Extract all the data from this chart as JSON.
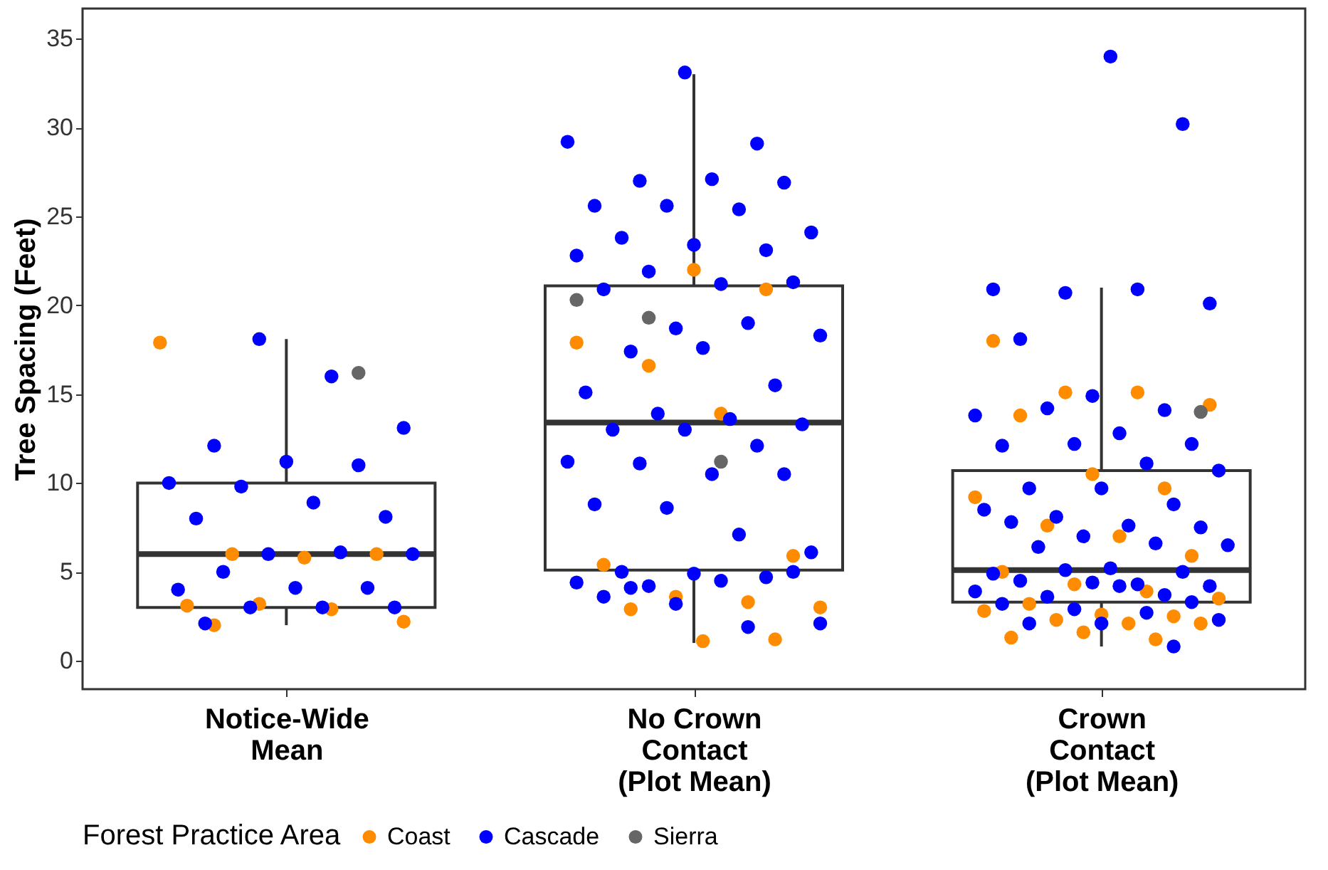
{
  "chart_data": {
    "type": "box",
    "ylabel": "Tree Spacing (Feet)",
    "legend_title": "Forest Practice Area",
    "legend": "bottom",
    "categories": [
      "Notice-Wide\nMean",
      "No Crown\nContact\n(Plot Mean)",
      "Crown\nContact\n(Plot Mean)"
    ],
    "ylim": [
      -1.6,
      36.7
    ],
    "yticks": [
      0,
      5,
      10,
      15,
      20,
      25,
      30,
      35
    ],
    "grid": false,
    "boxes": [
      {
        "low": 2.0,
        "q1": 3.0,
        "median": 6.0,
        "q3": 10.0,
        "high": 18.1
      },
      {
        "low": 1.0,
        "q1": 5.1,
        "median": 13.4,
        "q3": 21.1,
        "high": 33.0
      },
      {
        "low": 0.8,
        "q1": 3.3,
        "median": 5.1,
        "q3": 10.7,
        "high": 21.0
      }
    ],
    "series": [
      {
        "name": "Coast",
        "type": "scatter",
        "color": "#ff8c00",
        "x": [
          "Notice-Wide\nMean",
          "Notice-Wide\nMean",
          "Notice-Wide\nMean",
          "Notice-Wide\nMean",
          "Notice-Wide\nMean",
          "Notice-Wide\nMean",
          "Notice-Wide\nMean",
          "Notice-Wide\nMean",
          "Notice-Wide\nMean",
          "No Crown\nContact\n(Plot Mean)",
          "No Crown\nContact\n(Plot Mean)",
          "No Crown\nContact\n(Plot Mean)",
          "No Crown\nContact\n(Plot Mean)",
          "No Crown\nContact\n(Plot Mean)",
          "No Crown\nContact\n(Plot Mean)",
          "No Crown\nContact\n(Plot Mean)",
          "No Crown\nContact\n(Plot Mean)",
          "No Crown\nContact\n(Plot Mean)",
          "No Crown\nContact\n(Plot Mean)",
          "No Crown\nContact\n(Plot Mean)",
          "No Crown\nContact\n(Plot Mean)",
          "No Crown\nContact\n(Plot Mean)",
          "Crown\nContact\n(Plot Mean)",
          "Crown\nContact\n(Plot Mean)",
          "Crown\nContact\n(Plot Mean)",
          "Crown\nContact\n(Plot Mean)",
          "Crown\nContact\n(Plot Mean)",
          "Crown\nContact\n(Plot Mean)",
          "Crown\nContact\n(Plot Mean)",
          "Crown\nContact\n(Plot Mean)",
          "Crown\nContact\n(Plot Mean)",
          "Crown\nContact\n(Plot Mean)",
          "Crown\nContact\n(Plot Mean)",
          "Crown\nContact\n(Plot Mean)",
          "Crown\nContact\n(Plot Mean)",
          "Crown\nContact\n(Plot Mean)",
          "Crown\nContact\n(Plot Mean)",
          "Crown\nContact\n(Plot Mean)",
          "Crown\nContact\n(Plot Mean)",
          "Crown\nContact\n(Plot Mean)",
          "Crown\nContact\n(Plot Mean)",
          "Crown\nContact\n(Plot Mean)",
          "Crown\nContact\n(Plot Mean)",
          "Crown\nContact\n(Plot Mean)",
          "Crown\nContact\n(Plot Mean)",
          "Crown\nContact\n(Plot Mean)",
          "Crown\nContact\n(Plot Mean)"
        ],
        "values": [
          17.9,
          6.0,
          5.8,
          6.0,
          3.1,
          3.2,
          2.9,
          2.2,
          2.0,
          22.0,
          20.9,
          17.9,
          16.6,
          13.9,
          5.9,
          5.4,
          3.6,
          3.3,
          3.0,
          2.9,
          1.1,
          1.2,
          18.0,
          15.1,
          15.1,
          14.4,
          13.8,
          10.5,
          9.7,
          9.2,
          7.6,
          7.0,
          5.9,
          5.0,
          4.3,
          3.9,
          3.5,
          3.2,
          2.6,
          2.5,
          2.8,
          2.3,
          2.1,
          2.1,
          1.3,
          1.6,
          1.2
        ]
      },
      {
        "name": "Cascade",
        "type": "scatter",
        "color": "#0000ff",
        "x": [
          "Notice-Wide\nMean",
          "Notice-Wide\nMean",
          "Notice-Wide\nMean",
          "Notice-Wide\nMean",
          "Notice-Wide\nMean",
          "Notice-Wide\nMean",
          "Notice-Wide\nMean",
          "Notice-Wide\nMean",
          "Notice-Wide\nMean",
          "Notice-Wide\nMean",
          "Notice-Wide\nMean",
          "Notice-Wide\nMean",
          "Notice-Wide\nMean",
          "Notice-Wide\nMean",
          "Notice-Wide\nMean",
          "Notice-Wide\nMean",
          "Notice-Wide\nMean",
          "Notice-Wide\nMean",
          "Notice-Wide\nMean",
          "Notice-Wide\nMean",
          "Notice-Wide\nMean",
          "Notice-Wide\nMean",
          "No Crown\nContact\n(Plot Mean)",
          "No Crown\nContact\n(Plot Mean)",
          "No Crown\nContact\n(Plot Mean)",
          "No Crown\nContact\n(Plot Mean)",
          "No Crown\nContact\n(Plot Mean)",
          "No Crown\nContact\n(Plot Mean)",
          "No Crown\nContact\n(Plot Mean)",
          "No Crown\nContact\n(Plot Mean)",
          "No Crown\nContact\n(Plot Mean)",
          "No Crown\nContact\n(Plot Mean)",
          "No Crown\nContact\n(Plot Mean)",
          "No Crown\nContact\n(Plot Mean)",
          "No Crown\nContact\n(Plot Mean)",
          "No Crown\nContact\n(Plot Mean)",
          "No Crown\nContact\n(Plot Mean)",
          "No Crown\nContact\n(Plot Mean)",
          "No Crown\nContact\n(Plot Mean)",
          "No Crown\nContact\n(Plot Mean)",
          "No Crown\nContact\n(Plot Mean)",
          "No Crown\nContact\n(Plot Mean)",
          "No Crown\nContact\n(Plot Mean)",
          "No Crown\nContact\n(Plot Mean)",
          "No Crown\nContact\n(Plot Mean)",
          "No Crown\nContact\n(Plot Mean)",
          "No Crown\nContact\n(Plot Mean)",
          "No Crown\nContact\n(Plot Mean)",
          "No Crown\nContact\n(Plot Mean)",
          "No Crown\nContact\n(Plot Mean)",
          "No Crown\nContact\n(Plot Mean)",
          "No Crown\nContact\n(Plot Mean)",
          "No Crown\nContact\n(Plot Mean)",
          "No Crown\nContact\n(Plot Mean)",
          "No Crown\nContact\n(Plot Mean)",
          "No Crown\nContact\n(Plot Mean)",
          "No Crown\nContact\n(Plot Mean)",
          "No Crown\nContact\n(Plot Mean)",
          "No Crown\nContact\n(Plot Mean)",
          "No Crown\nContact\n(Plot Mean)",
          "No Crown\nContact\n(Plot Mean)",
          "No Crown\nContact\n(Plot Mean)",
          "No Crown\nContact\n(Plot Mean)",
          "No Crown\nContact\n(Plot Mean)",
          "No Crown\nContact\n(Plot Mean)",
          "No Crown\nContact\n(Plot Mean)",
          "No Crown\nContact\n(Plot Mean)",
          "No Crown\nContact\n(Plot Mean)",
          "No Crown\nContact\n(Plot Mean)",
          "No Crown\nContact\n(Plot Mean)",
          "No Crown\nContact\n(Plot Mean)",
          "No Crown\nContact\n(Plot Mean)",
          "No Crown\nContact\n(Plot Mean)",
          "Crown\nContact\n(Plot Mean)",
          "Crown\nContact\n(Plot Mean)",
          "Crown\nContact\n(Plot Mean)",
          "Crown\nContact\n(Plot Mean)",
          "Crown\nContact\n(Plot Mean)",
          "Crown\nContact\n(Plot Mean)",
          "Crown\nContact\n(Plot Mean)",
          "Crown\nContact\n(Plot Mean)",
          "Crown\nContact\n(Plot Mean)",
          "Crown\nContact\n(Plot Mean)",
          "Crown\nContact\n(Plot Mean)",
          "Crown\nContact\n(Plot Mean)",
          "Crown\nContact\n(Plot Mean)",
          "Crown\nContact\n(Plot Mean)",
          "Crown\nContact\n(Plot Mean)",
          "Crown\nContact\n(Plot Mean)",
          "Crown\nContact\n(Plot Mean)",
          "Crown\nContact\n(Plot Mean)",
          "Crown\nContact\n(Plot Mean)",
          "Crown\nContact\n(Plot Mean)",
          "Crown\nContact\n(Plot Mean)",
          "Crown\nContact\n(Plot Mean)",
          "Crown\nContact\n(Plot Mean)",
          "Crown\nContact\n(Plot Mean)",
          "Crown\nContact\n(Plot Mean)",
          "Crown\nContact\n(Plot Mean)",
          "Crown\nContact\n(Plot Mean)",
          "Crown\nContact\n(Plot Mean)",
          "Crown\nContact\n(Plot Mean)",
          "Crown\nContact\n(Plot Mean)",
          "Crown\nContact\n(Plot Mean)",
          "Crown\nContact\n(Plot Mean)",
          "Crown\nContact\n(Plot Mean)",
          "Crown\nContact\n(Plot Mean)",
          "Crown\nContact\n(Plot Mean)",
          "Crown\nContact\n(Plot Mean)",
          "Crown\nContact\n(Plot Mean)",
          "Crown\nContact\n(Plot Mean)",
          "Crown\nContact\n(Plot Mean)",
          "Crown\nContact\n(Plot Mean)",
          "Crown\nContact\n(Plot Mean)",
          "Crown\nContact\n(Plot Mean)",
          "Crown\nContact\n(Plot Mean)",
          "Crown\nContact\n(Plot Mean)",
          "Crown\nContact\n(Plot Mean)",
          "Crown\nContact\n(Plot Mean)",
          "Crown\nContact\n(Plot Mean)",
          "Crown\nContact\n(Plot Mean)",
          "Crown\nContact\n(Plot Mean)"
        ],
        "values": [
          18.1,
          16.0,
          13.1,
          12.1,
          11.2,
          11.0,
          10.0,
          9.8,
          8.9,
          8.1,
          8.0,
          6.0,
          6.1,
          6.0,
          5.0,
          4.1,
          4.1,
          4.0,
          3.0,
          3.0,
          3.0,
          2.1,
          33.1,
          29.1,
          29.2,
          27.0,
          27.1,
          26.9,
          25.6,
          25.6,
          25.4,
          24.1,
          23.8,
          23.4,
          23.1,
          22.8,
          21.9,
          21.2,
          21.3,
          20.9,
          18.7,
          19.0,
          18.3,
          17.4,
          17.6,
          15.5,
          15.1,
          13.9,
          13.6,
          13.3,
          13.0,
          13.0,
          12.1,
          11.2,
          11.1,
          10.5,
          10.5,
          8.8,
          8.6,
          7.1,
          6.1,
          5.0,
          4.9,
          4.7,
          4.4,
          4.2,
          4.5,
          5.0,
          3.6,
          3.2,
          1.9,
          2.1,
          4.1,
          34.0,
          30.2,
          20.9,
          20.7,
          20.9,
          20.1,
          18.1,
          14.9,
          14.1,
          13.8,
          14.2,
          12.8,
          12.2,
          12.1,
          12.2,
          11.1,
          10.7,
          9.7,
          9.7,
          8.8,
          8.5,
          8.1,
          7.6,
          7.5,
          7.8,
          7.0,
          6.6,
          6.5,
          6.4,
          5.2,
          5.0,
          4.9,
          5.1,
          4.3,
          4.2,
          4.5,
          4.4,
          3.7,
          3.9,
          3.6,
          4.2,
          3.3,
          3.2,
          2.9,
          2.7,
          2.3,
          2.1,
          2.1,
          0.8
        ]
      },
      {
        "name": "Sierra",
        "type": "scatter",
        "color": "#666666",
        "x": [
          "Notice-Wide\nMean",
          "No Crown\nContact\n(Plot Mean)",
          "No Crown\nContact\n(Plot Mean)",
          "No Crown\nContact\n(Plot Mean)",
          "Crown\nContact\n(Plot Mean)"
        ],
        "values": [
          16.2,
          20.3,
          19.3,
          11.2,
          14.0
        ]
      }
    ]
  }
}
